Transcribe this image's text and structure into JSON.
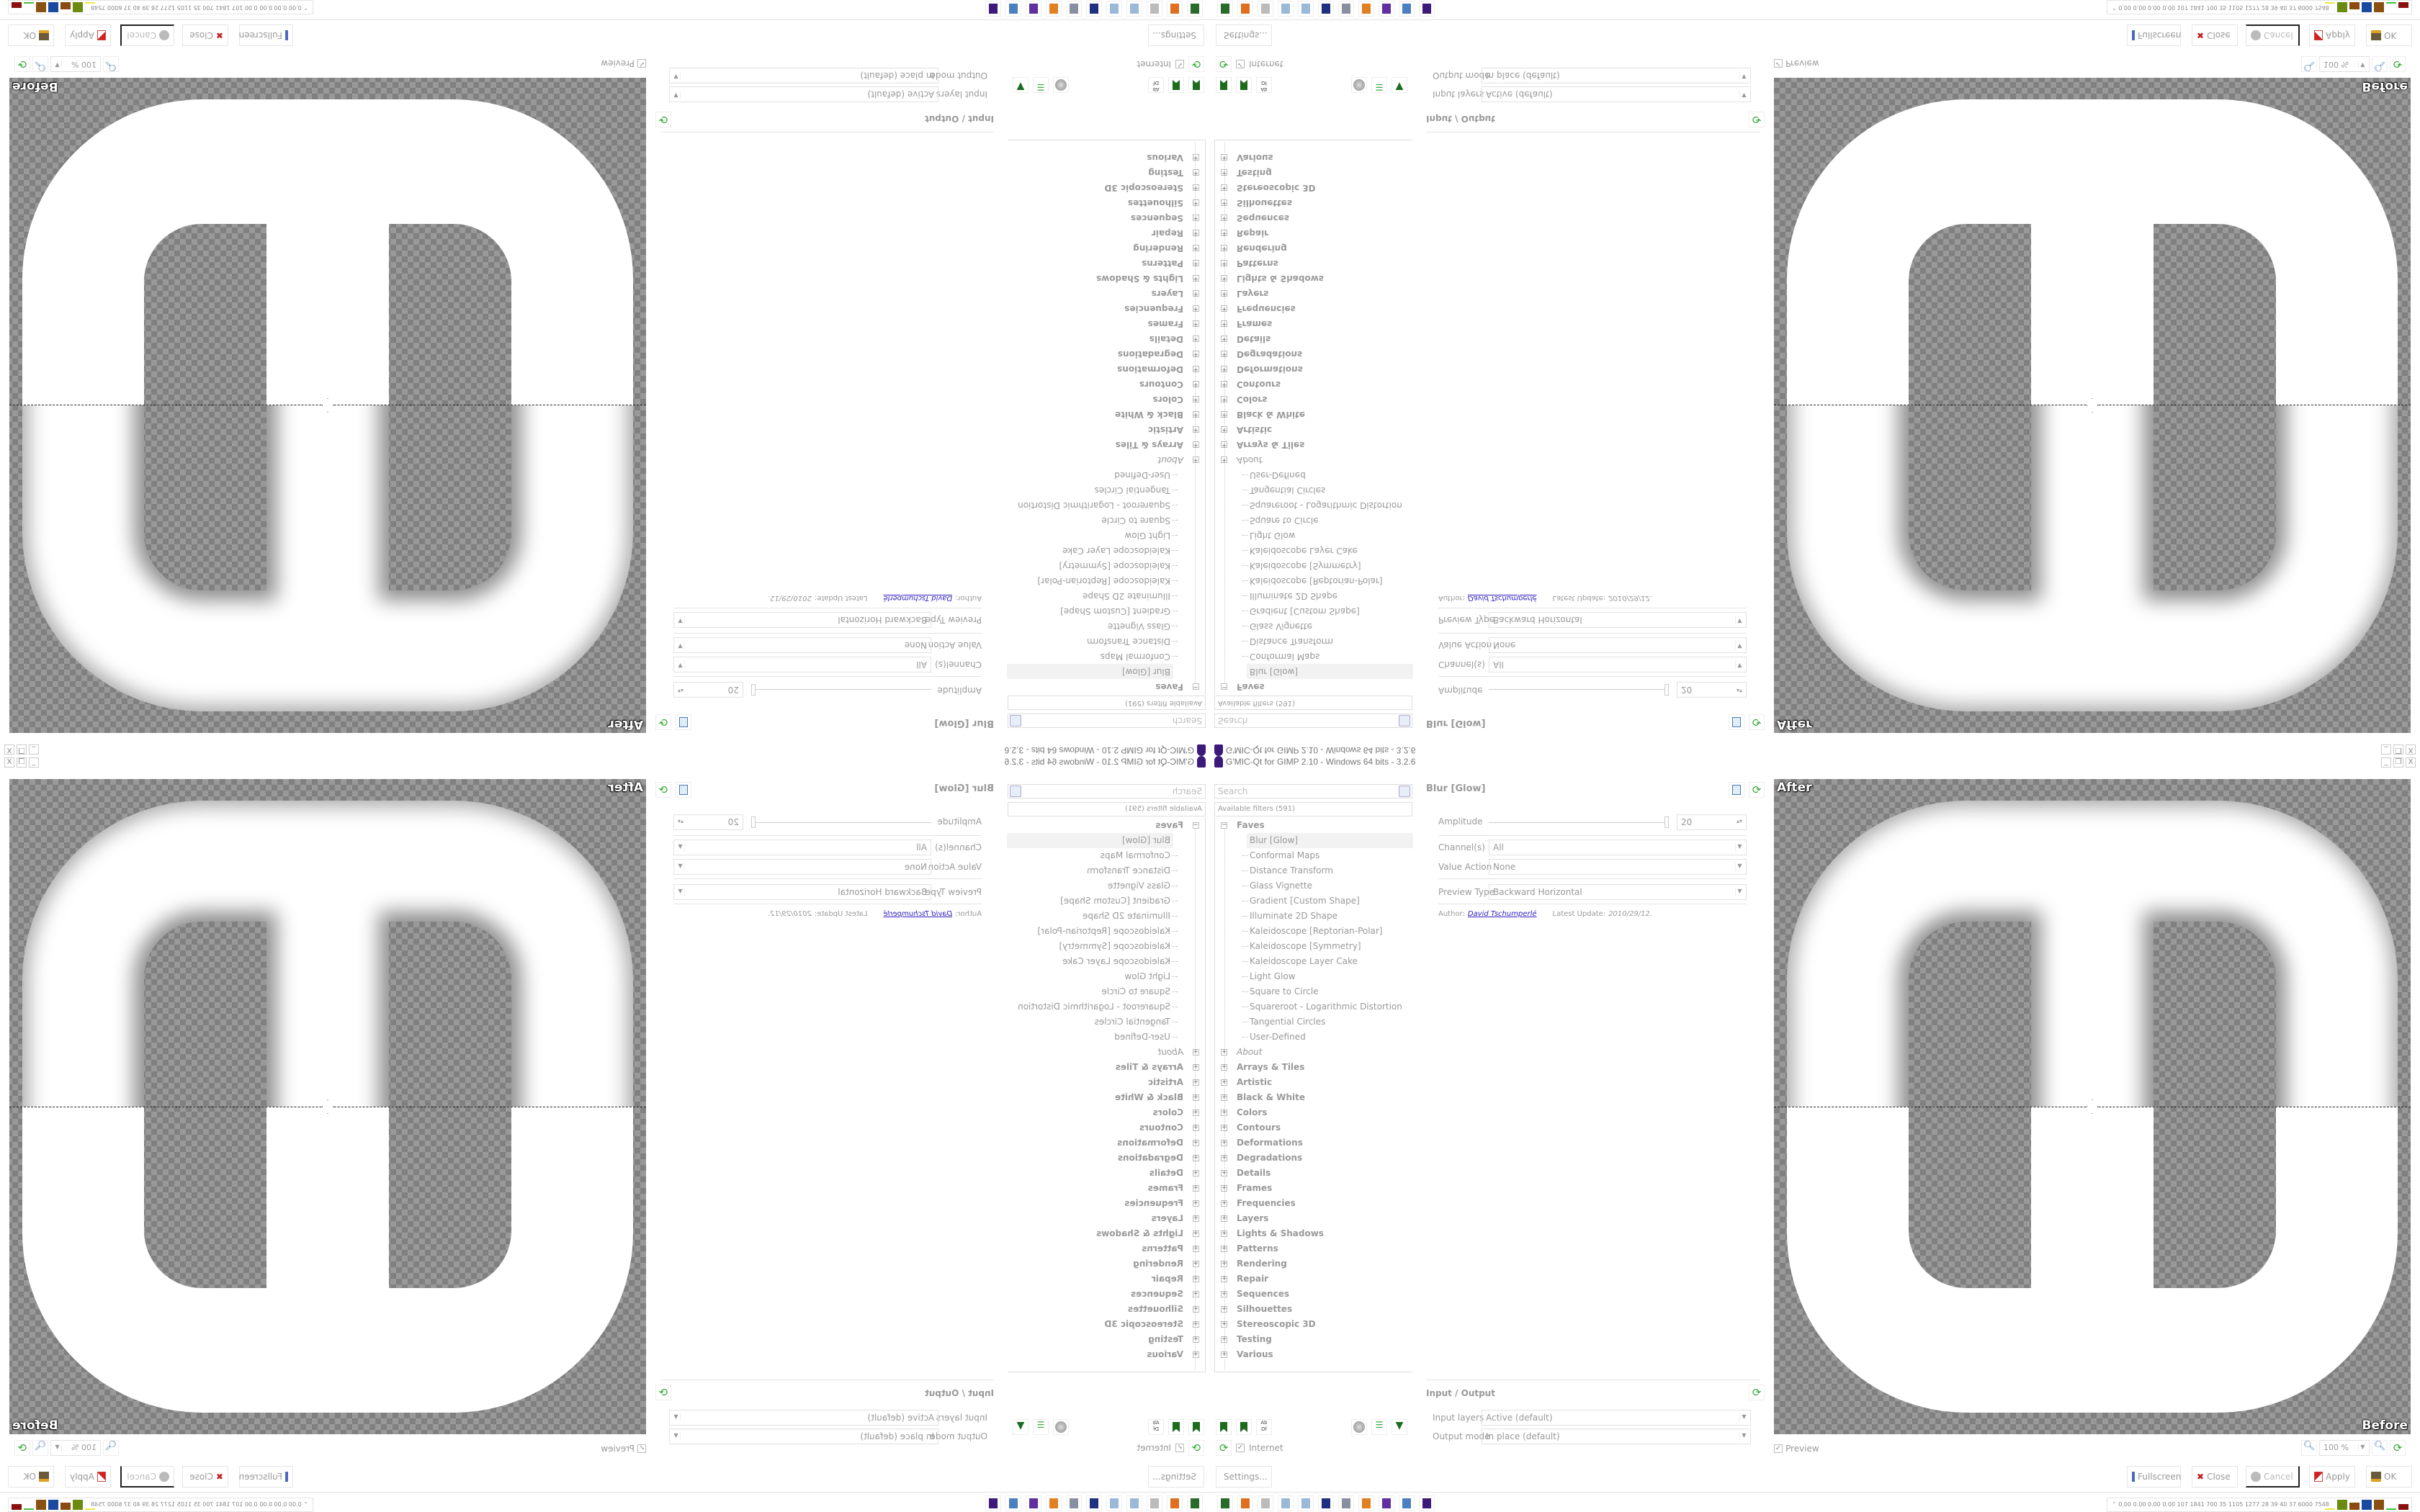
{
  "window": {
    "title": "G'MIC-Qt for GIMP 2.10 - Windows 64 bits - 3.2.6",
    "controls": [
      "_",
      "❐",
      "X"
    ]
  },
  "filters": {
    "search_placeholder": "Search",
    "available_label": "Available filters (591)",
    "faves_label": "Faves",
    "faves": [
      "Blur [Glow]",
      "Conformal Maps",
      "Distance Transform",
      "Glass Vignette",
      "Gradient [Custom Shape]",
      "Illuminate 2D Shape",
      "Kaleidoscope [Reptorian-Polar]",
      "Kaleidoscope [Symmetry]",
      "Kaleidoscope Layer Cake",
      "Light Glow",
      "Square to Circle",
      "Squareroot - Logarithmic Distortion",
      "Tangential Circles",
      "User-Defined"
    ],
    "selected": "Blur [Glow]",
    "categories": [
      "About",
      "Arrays & Tiles",
      "Artistic",
      "Black & White",
      "Colors",
      "Contours",
      "Deformations",
      "Degradations",
      "Details",
      "Frames",
      "Frequencies",
      "Layers",
      "Lights & Shadows",
      "Patterns",
      "Rendering",
      "Repair",
      "Sequences",
      "Silhouettes",
      "Stereoscopic 3D",
      "Testing",
      "Various"
    ],
    "internet_label": "Internet",
    "internet_checked": true,
    "settings_label": "Settings..."
  },
  "panel": {
    "title": "Blur [Glow]",
    "amplitude_label": "Amplitude",
    "amplitude_value": "20",
    "amplitude_fraction": 1.0,
    "channels_label": "Channel(s)",
    "channels_value": "All",
    "value_action_label": "Value Action",
    "value_action_value": "None",
    "preview_type_label": "Preview Type",
    "preview_type_value": "Backward Horizontal",
    "author_label": "Author:",
    "author_name": "David Tschumperlé",
    "update_label": "Latest Update:",
    "update_value": "2010/29/12."
  },
  "io": {
    "title": "Input / Output",
    "input_label": "Input layers",
    "input_value": "Active (default)",
    "output_label": "Output mode",
    "output_value": "In place (default)"
  },
  "preview": {
    "after_label": "After",
    "before_label": "Before",
    "preview_label": "Preview",
    "preview_checked": true,
    "zoom_value": "100 %"
  },
  "buttons": {
    "fullscreen": "Fullscreen",
    "close": "Close",
    "cancel": "Cancel",
    "apply": "Apply",
    "ok": "OK"
  },
  "status": {
    "numbers": "0.00 0.00 0.00 0.00 107 1841 700 35 1105 1277 28 39 40 37 6000 7548",
    "bar_colors": [
      "#e8e840",
      "#6a8a10",
      "#8a4a10",
      "#1a4aa0",
      "#8a5010",
      "#40c040",
      "#8a1010"
    ]
  },
  "taskbar": {
    "icons": [
      "device-icon",
      "firefox-icon",
      "gimp-icon",
      "notepad-icon",
      "notepad2-icon",
      "floppy-icon",
      "document-icon",
      "blender-icon",
      "app-icon",
      "calculator-icon",
      "gmic-wizard-icon"
    ],
    "colors": [
      "#2a6a2a",
      "#e07020",
      "#bbbbbb",
      "#9ab8d8",
      "#9ab8d8",
      "#203080",
      "#8890a0",
      "#e08020",
      "#6030a0",
      "#4a80c0",
      "#3b1a7a"
    ]
  }
}
